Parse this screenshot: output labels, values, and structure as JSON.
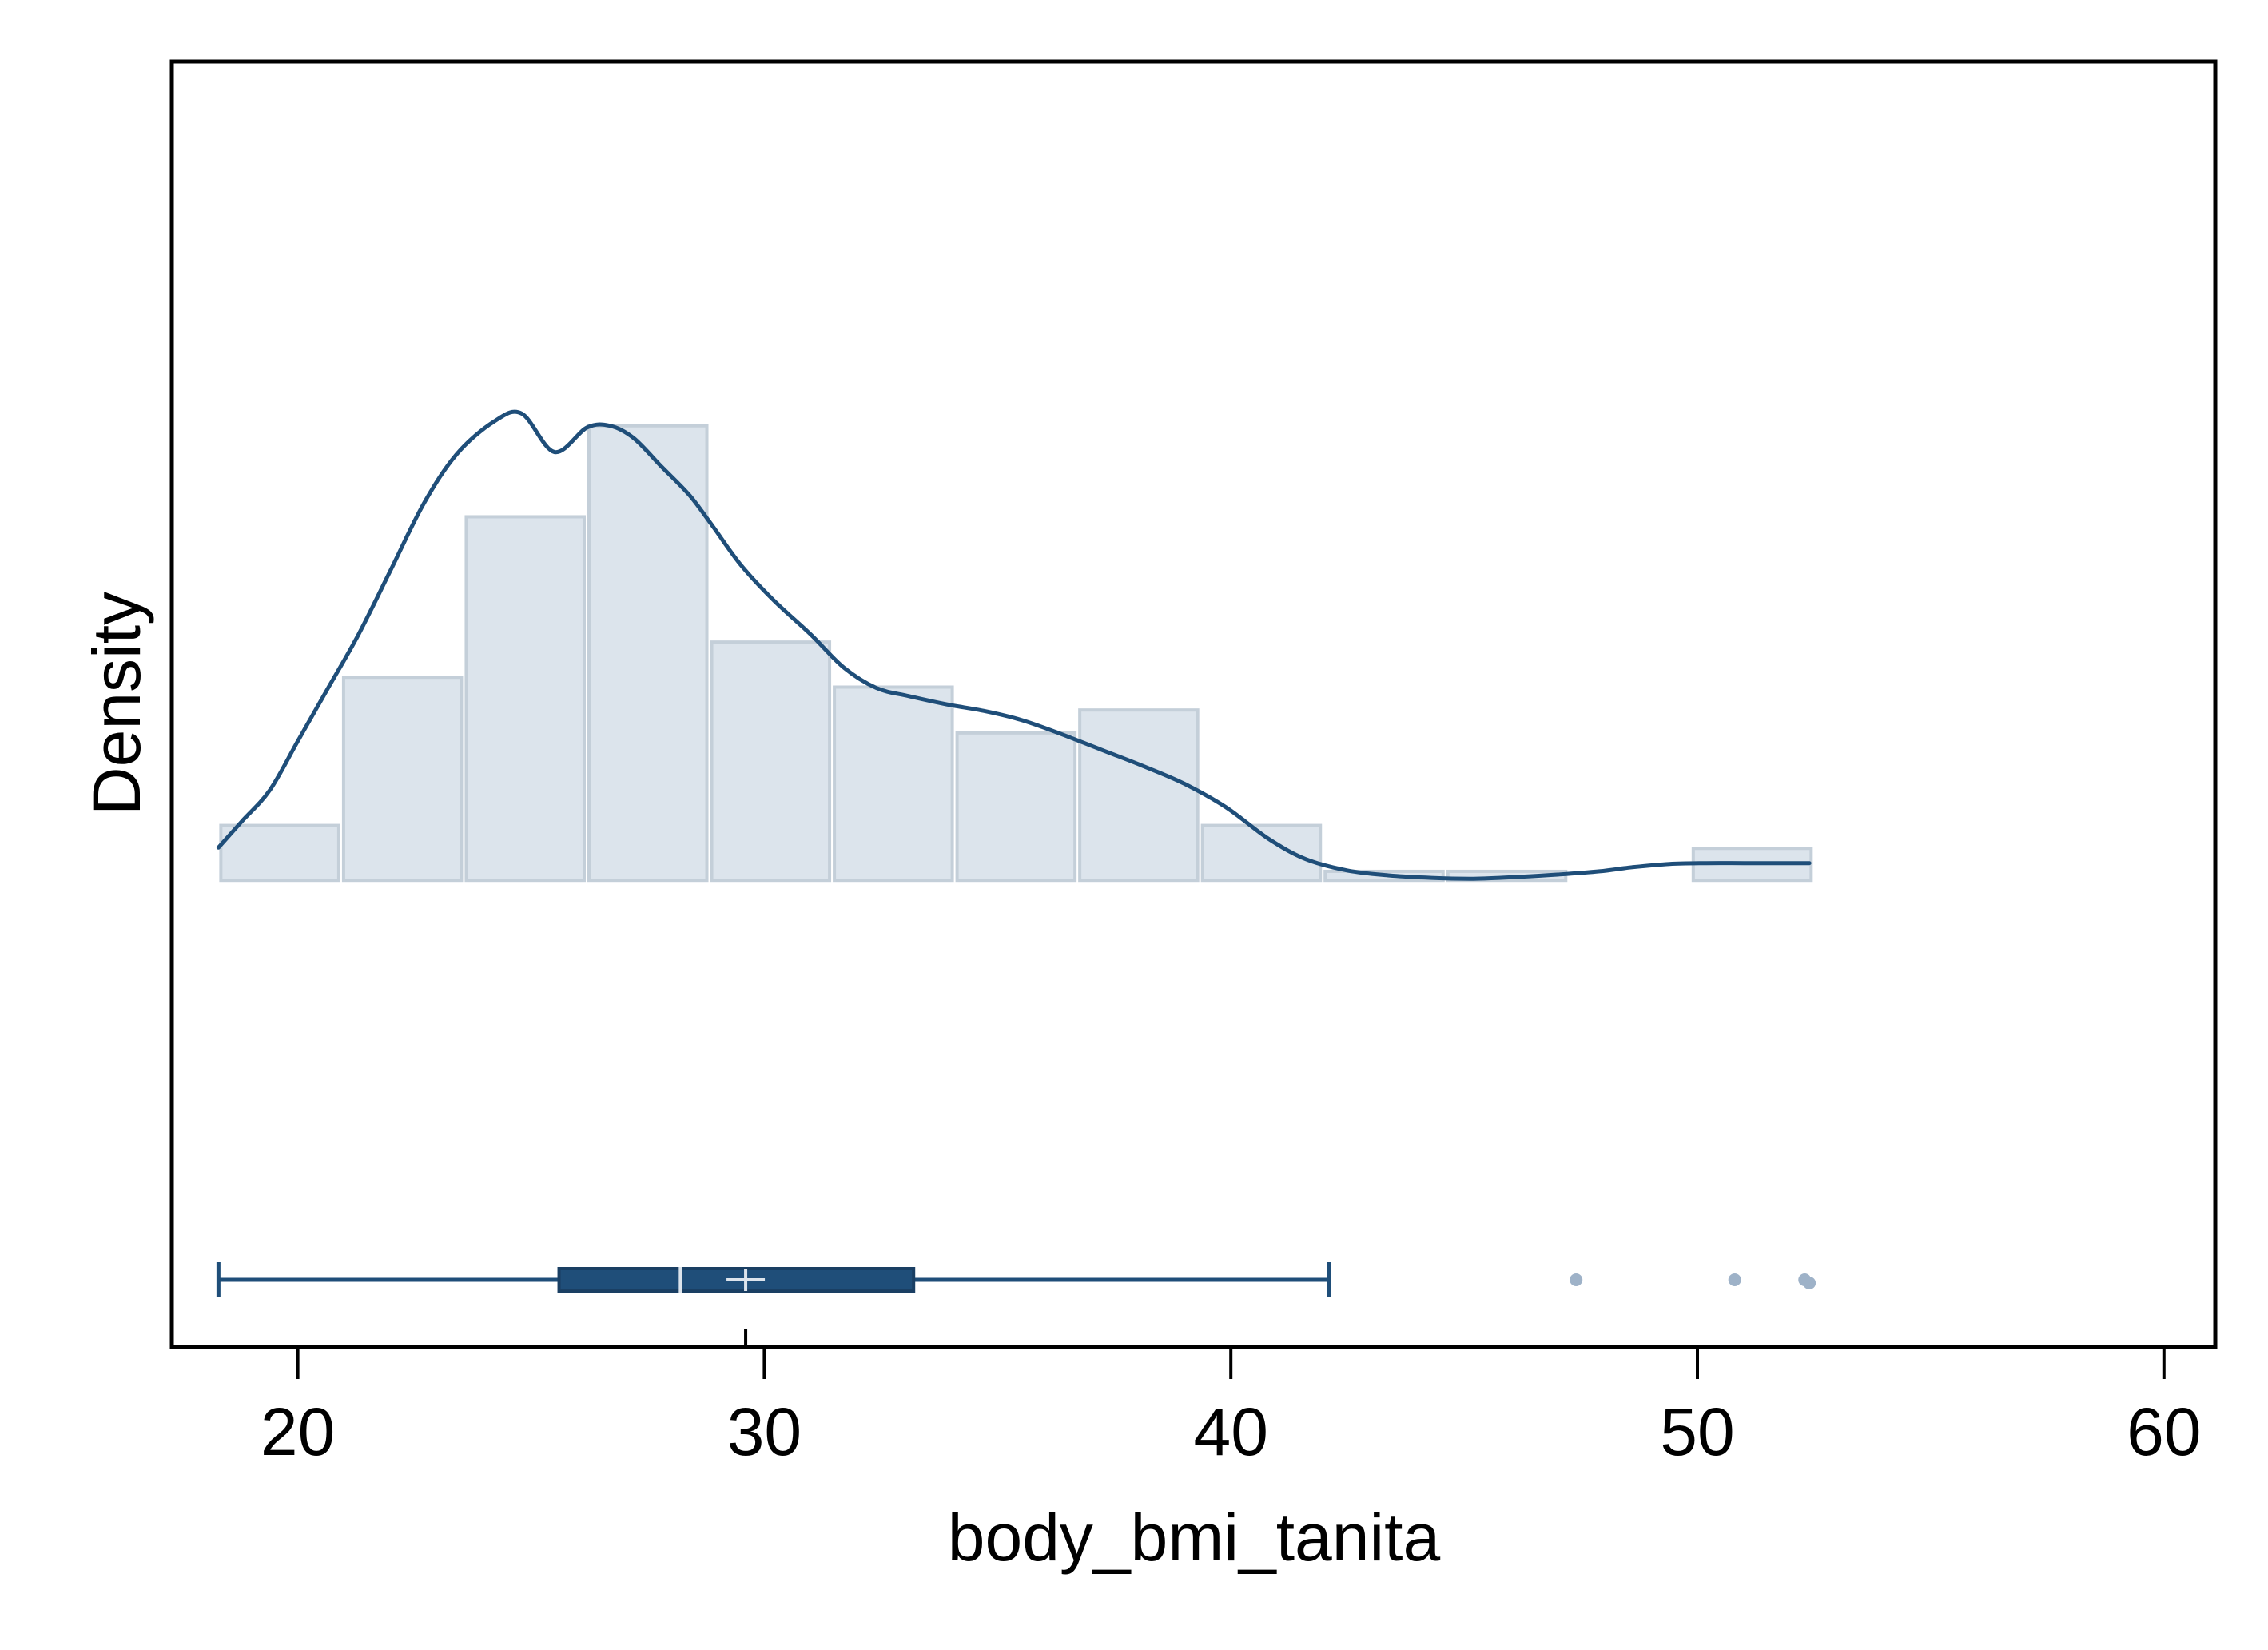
{
  "chart_data": {
    "type": "histogram",
    "title": "",
    "xlabel": "body_bmi_tanita",
    "ylabel": "Density",
    "xlim": [
      17.3,
      61.1
    ],
    "ylim": [
      -0.057,
      0.1
    ],
    "x_ticks": [
      20,
      30,
      40,
      50,
      60
    ],
    "y_ticks": [],
    "grid": false,
    "legend": "none",
    "histogram": {
      "bin_start": 18.3,
      "bin_width": 2.63,
      "densities": [
        0.0067,
        0.0248,
        0.0444,
        0.0555,
        0.0291,
        0.0236,
        0.018,
        0.0208,
        0.0067,
        0.0011,
        0.0011,
        0,
        0.0039
      ],
      "bar_fill": "#dce4ec",
      "bar_stroke": "#c4cfd9"
    },
    "density_curve": {
      "x": [
        18.3,
        18.8,
        19.4,
        20.0,
        20.6,
        21.3,
        22.0,
        22.7,
        23.4,
        24.2,
        24.8,
        25.5,
        26.2,
        26.7,
        27.2,
        27.8,
        28.4,
        28.9,
        29.5,
        30.2,
        31.0,
        31.7,
        32.4,
        33.1,
        33.9,
        34.7,
        35.5,
        36.3,
        37.2,
        38.1,
        39.0,
        39.9,
        40.8,
        41.6,
        42.5,
        43.4,
        44.3,
        45.2,
        46.1,
        47.0,
        47.9,
        48.6,
        49.4,
        50.2,
        51.0,
        51.8,
        52.4
      ],
      "y": [
        0.004,
        0.0072,
        0.011,
        0.017,
        0.023,
        0.03,
        0.038,
        0.046,
        0.052,
        0.056,
        0.057,
        0.0523,
        0.0553,
        0.0555,
        0.054,
        0.0505,
        0.047,
        0.0432,
        0.0385,
        0.0342,
        0.03,
        0.026,
        0.0235,
        0.0225,
        0.0215,
        0.0207,
        0.0196,
        0.018,
        0.016,
        0.014,
        0.0118,
        0.0089,
        0.0051,
        0.0026,
        0.0012,
        0.0006,
        0.0003,
        0.0002,
        0.0004,
        0.0007,
        0.0011,
        0.0016,
        0.002,
        0.0021,
        0.0021,
        0.0021,
        0.0021
      ],
      "color": "#1f4e79"
    },
    "boxplot": {
      "whisker_low": 18.3,
      "q1": 25.6,
      "median": 28.2,
      "mean": 29.6,
      "q3": 33.2,
      "whisker_high": 42.1,
      "outliers": [
        47.4,
        50.8,
        52.3,
        52.4
      ],
      "color": "#1f4e79",
      "outlier_color": "#9eb2c8"
    }
  }
}
